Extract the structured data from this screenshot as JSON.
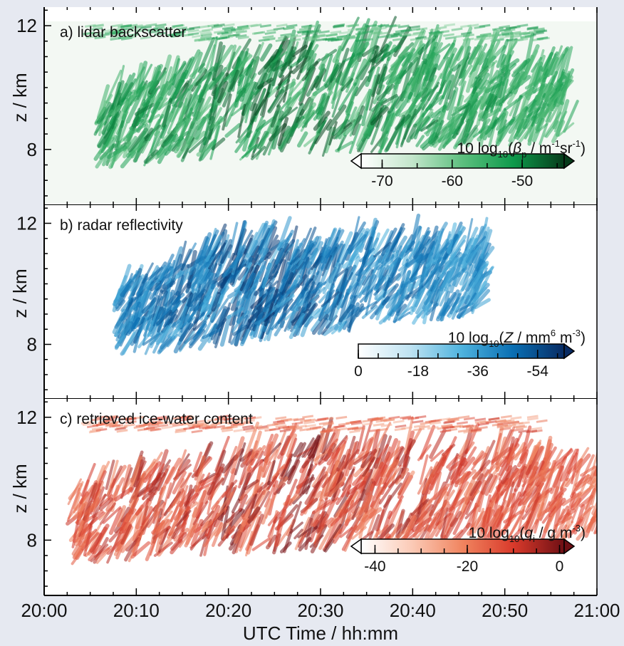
{
  "figure": {
    "background": "#e6e9f1",
    "x_axis": {
      "label": "UTC Time / hh:mm",
      "range": [
        "20:00",
        "21:00"
      ],
      "ticks": [
        "20:00",
        "20:10",
        "20:20",
        "20:30",
        "20:40",
        "20:50",
        "21:00"
      ],
      "minor_tick_interval_min": 2.5
    }
  },
  "chart_data": [
    {
      "type": "heatmap",
      "panel_label": "a) lidar backscatter",
      "ylabel": "z / km",
      "ylim": [
        6.2,
        12.6
      ],
      "yticks": [
        8,
        12
      ],
      "colorbar": {
        "label": "10 log10(βp / m-1sr-1)",
        "label_parts": {
          "prefix": "10 log",
          "sub": "10",
          "open": "(",
          "symbol": "β",
          "symbol_sub": "p",
          "units": " / m",
          "sup1": "-1",
          "mid": "sr",
          "sup2": "-1",
          "close": ")"
        },
        "ticks": [
          "-70",
          "-60",
          "-50"
        ],
        "tick_values": [
          -70,
          -60,
          -50
        ],
        "range": [
          -73,
          -44
        ],
        "extend": "both",
        "colors": [
          "#ffffff",
          "#c3e6cb",
          "#5cbf7e",
          "#0e9a4b",
          "#063b1a"
        ]
      },
      "cloud_extent": {
        "time_start_min": 5.5,
        "time_end_min": 56.5,
        "base_km": 7.4,
        "top_km": 12.1
      },
      "features": {
        "upper_layer": {
          "time_min": [
            3,
            55
          ],
          "z_km": [
            11.4,
            12.1
          ]
        },
        "main_body": {
          "time_min": [
            1,
            50
          ],
          "z_km": [
            7.6,
            11.5
          ]
        },
        "right_fragment": {
          "time_min": [
            59,
            60
          ],
          "z_km": [
            10.2,
            11.2
          ]
        }
      }
    },
    {
      "type": "heatmap",
      "panel_label": "b) radar reflectivity",
      "ylabel": "z / km",
      "ylim": [
        6.2,
        12.6
      ],
      "yticks": [
        8,
        12
      ],
      "colorbar": {
        "label": "10 log10(Z / mm6 m-3)",
        "label_parts": {
          "prefix": "10 log",
          "sub": "10",
          "open": "(",
          "symbol": "Z",
          "units": " / mm",
          "sup1": "6",
          "mid": " m",
          "sup2": "-3",
          "close": ")"
        },
        "ticks": [
          "0",
          "-18",
          "-36",
          "-54"
        ],
        "tick_values": [
          0,
          -18,
          -36,
          -54
        ],
        "range": [
          0,
          -62
        ],
        "extend": "max",
        "colors": [
          "#ffffff",
          "#bfe3f2",
          "#4fb3de",
          "#0a6fb3",
          "#082b63"
        ]
      },
      "cloud_extent": {
        "time_start_min": 7.5,
        "time_end_min": 47.5,
        "base_km": 7.5,
        "top_km": 11.2
      }
    },
    {
      "type": "heatmap",
      "panel_label": "c) retrieved ice-water content",
      "ylabel": "z / km",
      "ylim": [
        6.2,
        12.6
      ],
      "yticks": [
        8,
        12
      ],
      "colorbar": {
        "label": "10 log10(qi / g m-3)",
        "label_parts": {
          "prefix": "10 log",
          "sub": "10",
          "open": "(",
          "symbol": "q",
          "symbol_sub": "i",
          "units": " / g m",
          "sup1": "",
          "mid": "",
          "sup2": "-3",
          "close": ")"
        },
        "ticks": [
          "-40",
          "-20",
          "0"
        ],
        "tick_values": [
          -40,
          -20,
          0
        ],
        "range": [
          -43,
          1
        ],
        "extend": "both",
        "colors": [
          "#ffffff",
          "#fbcab6",
          "#f0845f",
          "#d93a2b",
          "#6e0f14"
        ]
      },
      "cloud_extent": {
        "time_start_min": 2.5,
        "time_end_min": 60,
        "base_km": 7.2,
        "top_km": 12.0
      }
    }
  ]
}
